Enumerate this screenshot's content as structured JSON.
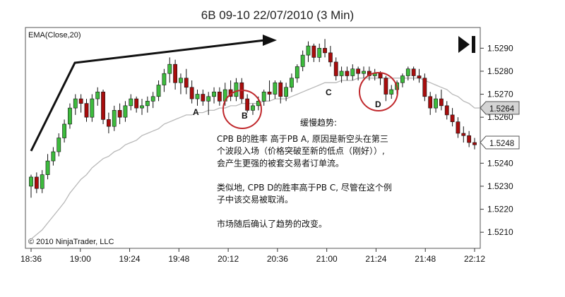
{
  "title": "6B 09-10  22/07/2010 (3 Min)",
  "indicator_label": "EMA(Close,20)",
  "copyright": "© 2010 NinjaTrader, LLC",
  "colors": {
    "up": "#3dbb3d",
    "down": "#a80d0d",
    "ema": "#b8b8b8",
    "circle": "#c0282c",
    "trend": "#111111"
  },
  "annotations": {
    "labels": {
      "A": "A",
      "B": "B",
      "C": "C",
      "D": "D"
    },
    "note_title": "缓慢趋势:",
    "note_lines": [
      "CPB B的胜率 高于PB A, 原因是新空头在第三",
      "个波段入场（价格突破至新的低点（刚好））,",
      "会产生更强的被套交易者订单流。",
      "",
      "类似地, CPB D的胜率高于PB C, 尽管在这个例",
      "子中该交易被取消。",
      "",
      "市场随后确认了趋势的改变。"
    ]
  },
  "chart_data": {
    "type": "candlestick",
    "title": "6B 09-10  22/07/2010 (3 Min)",
    "x_ticks": [
      "18:36",
      "19:00",
      "19:24",
      "19:48",
      "20:12",
      "20:36",
      "21:00",
      "21:24",
      "21:48",
      "22:12"
    ],
    "y_ticks": [
      "1.5290",
      "1.5280",
      "1.5270",
      "1.5260",
      "1.5240",
      "1.5230",
      "1.5220",
      "1.5210"
    ],
    "ylim": [
      1.5203,
      1.5299
    ],
    "current_ema": "1.5264",
    "current_price": "1.5248",
    "candles": [
      {
        "o": 1.523,
        "h": 1.5235,
        "l": 1.5225,
        "c": 1.5234
      },
      {
        "o": 1.5234,
        "h": 1.5236,
        "l": 1.5227,
        "c": 1.5229
      },
      {
        "o": 1.5229,
        "h": 1.5237,
        "l": 1.5227,
        "c": 1.5235
      },
      {
        "o": 1.5235,
        "h": 1.5244,
        "l": 1.5233,
        "c": 1.5241
      },
      {
        "o": 1.5241,
        "h": 1.5247,
        "l": 1.5239,
        "c": 1.5245
      },
      {
        "o": 1.5245,
        "h": 1.5253,
        "l": 1.5243,
        "c": 1.5251
      },
      {
        "o": 1.5251,
        "h": 1.5259,
        "l": 1.5249,
        "c": 1.5257
      },
      {
        "o": 1.5257,
        "h": 1.5266,
        "l": 1.5255,
        "c": 1.5264
      },
      {
        "o": 1.5264,
        "h": 1.527,
        "l": 1.5261,
        "c": 1.5268
      },
      {
        "o": 1.5268,
        "h": 1.527,
        "l": 1.5262,
        "c": 1.5266
      },
      {
        "o": 1.5266,
        "h": 1.5268,
        "l": 1.5258,
        "c": 1.526
      },
      {
        "o": 1.526,
        "h": 1.527,
        "l": 1.5258,
        "c": 1.5268
      },
      {
        "o": 1.5268,
        "h": 1.5273,
        "l": 1.5265,
        "c": 1.5271
      },
      {
        "o": 1.5271,
        "h": 1.5272,
        "l": 1.5257,
        "c": 1.5259
      },
      {
        "o": 1.5259,
        "h": 1.5262,
        "l": 1.5253,
        "c": 1.5256
      },
      {
        "o": 1.5256,
        "h": 1.5265,
        "l": 1.5254,
        "c": 1.5263
      },
      {
        "o": 1.5263,
        "h": 1.5266,
        "l": 1.5257,
        "c": 1.526
      },
      {
        "o": 1.526,
        "h": 1.5267,
        "l": 1.5258,
        "c": 1.5265
      },
      {
        "o": 1.5265,
        "h": 1.527,
        "l": 1.5263,
        "c": 1.5268
      },
      {
        "o": 1.5268,
        "h": 1.5269,
        "l": 1.5262,
        "c": 1.5264
      },
      {
        "o": 1.5264,
        "h": 1.5268,
        "l": 1.5261,
        "c": 1.5265
      },
      {
        "o": 1.5265,
        "h": 1.5269,
        "l": 1.5262,
        "c": 1.5267
      },
      {
        "o": 1.5267,
        "h": 1.5271,
        "l": 1.5264,
        "c": 1.5269
      },
      {
        "o": 1.5269,
        "h": 1.5276,
        "l": 1.5267,
        "c": 1.5274
      },
      {
        "o": 1.5274,
        "h": 1.5281,
        "l": 1.5271,
        "c": 1.5279
      },
      {
        "o": 1.5279,
        "h": 1.5286,
        "l": 1.5275,
        "c": 1.5283
      },
      {
        "o": 1.5283,
        "h": 1.5285,
        "l": 1.5272,
        "c": 1.5275
      },
      {
        "o": 1.5275,
        "h": 1.5279,
        "l": 1.527,
        "c": 1.5277
      },
      {
        "o": 1.5277,
        "h": 1.5281,
        "l": 1.527,
        "c": 1.5273
      },
      {
        "o": 1.5273,
        "h": 1.5276,
        "l": 1.5266,
        "c": 1.5268
      },
      {
        "o": 1.5268,
        "h": 1.5272,
        "l": 1.5265,
        "c": 1.527
      },
      {
        "o": 1.527,
        "h": 1.5272,
        "l": 1.5265,
        "c": 1.5267
      },
      {
        "o": 1.5267,
        "h": 1.5271,
        "l": 1.5261,
        "c": 1.5269
      },
      {
        "o": 1.5269,
        "h": 1.5273,
        "l": 1.5266,
        "c": 1.5271
      },
      {
        "o": 1.5271,
        "h": 1.5273,
        "l": 1.5265,
        "c": 1.5267
      },
      {
        "o": 1.5267,
        "h": 1.5275,
        "l": 1.5265,
        "c": 1.5272
      },
      {
        "o": 1.5272,
        "h": 1.5276,
        "l": 1.5267,
        "c": 1.5269
      },
      {
        "o": 1.5269,
        "h": 1.5277,
        "l": 1.5267,
        "c": 1.5275
      },
      {
        "o": 1.5275,
        "h": 1.5277,
        "l": 1.5266,
        "c": 1.5268
      },
      {
        "o": 1.5268,
        "h": 1.527,
        "l": 1.5262,
        "c": 1.5263
      },
      {
        "o": 1.5263,
        "h": 1.5266,
        "l": 1.5261,
        "c": 1.5265
      },
      {
        "o": 1.5265,
        "h": 1.5269,
        "l": 1.5263,
        "c": 1.5267
      },
      {
        "o": 1.5267,
        "h": 1.5272,
        "l": 1.5265,
        "c": 1.5271
      },
      {
        "o": 1.5271,
        "h": 1.5276,
        "l": 1.5267,
        "c": 1.527
      },
      {
        "o": 1.527,
        "h": 1.5276,
        "l": 1.5268,
        "c": 1.5275
      },
      {
        "o": 1.5275,
        "h": 1.5276,
        "l": 1.5266,
        "c": 1.5269
      },
      {
        "o": 1.5269,
        "h": 1.5275,
        "l": 1.5267,
        "c": 1.5273
      },
      {
        "o": 1.5273,
        "h": 1.5279,
        "l": 1.5271,
        "c": 1.5277
      },
      {
        "o": 1.5277,
        "h": 1.5283,
        "l": 1.5275,
        "c": 1.5282
      },
      {
        "o": 1.5282,
        "h": 1.5289,
        "l": 1.528,
        "c": 1.5287
      },
      {
        "o": 1.5287,
        "h": 1.5293,
        "l": 1.5284,
        "c": 1.5291
      },
      {
        "o": 1.5291,
        "h": 1.5292,
        "l": 1.5284,
        "c": 1.5286
      },
      {
        "o": 1.5286,
        "h": 1.5292,
        "l": 1.5284,
        "c": 1.529
      },
      {
        "o": 1.529,
        "h": 1.5294,
        "l": 1.5286,
        "c": 1.5288
      },
      {
        "o": 1.5288,
        "h": 1.5291,
        "l": 1.5282,
        "c": 1.5284
      },
      {
        "o": 1.5284,
        "h": 1.5286,
        "l": 1.5276,
        "c": 1.5278
      },
      {
        "o": 1.5278,
        "h": 1.5282,
        "l": 1.5275,
        "c": 1.528
      },
      {
        "o": 1.528,
        "h": 1.5282,
        "l": 1.5276,
        "c": 1.5278
      },
      {
        "o": 1.5278,
        "h": 1.5283,
        "l": 1.5276,
        "c": 1.5281
      },
      {
        "o": 1.5281,
        "h": 1.5282,
        "l": 1.5276,
        "c": 1.5279
      },
      {
        "o": 1.5279,
        "h": 1.5282,
        "l": 1.5277,
        "c": 1.528
      },
      {
        "o": 1.528,
        "h": 1.5282,
        "l": 1.5276,
        "c": 1.5278
      },
      {
        "o": 1.5278,
        "h": 1.5281,
        "l": 1.5276,
        "c": 1.5279
      },
      {
        "o": 1.5279,
        "h": 1.528,
        "l": 1.5274,
        "c": 1.5277
      },
      {
        "o": 1.5277,
        "h": 1.5278,
        "l": 1.5267,
        "c": 1.527
      },
      {
        "o": 1.527,
        "h": 1.5274,
        "l": 1.5268,
        "c": 1.5272
      },
      {
        "o": 1.5272,
        "h": 1.5276,
        "l": 1.527,
        "c": 1.5275
      },
      {
        "o": 1.5275,
        "h": 1.5279,
        "l": 1.5273,
        "c": 1.5278
      },
      {
        "o": 1.5278,
        "h": 1.5282,
        "l": 1.5276,
        "c": 1.5281
      },
      {
        "o": 1.5281,
        "h": 1.5282,
        "l": 1.5276,
        "c": 1.5278
      },
      {
        "o": 1.5278,
        "h": 1.5281,
        "l": 1.5275,
        "c": 1.5277
      },
      {
        "o": 1.5277,
        "h": 1.5279,
        "l": 1.5267,
        "c": 1.5269
      },
      {
        "o": 1.5269,
        "h": 1.5271,
        "l": 1.5261,
        "c": 1.5264
      },
      {
        "o": 1.5264,
        "h": 1.527,
        "l": 1.5262,
        "c": 1.5268
      },
      {
        "o": 1.5268,
        "h": 1.5272,
        "l": 1.5263,
        "c": 1.5265
      },
      {
        "o": 1.5265,
        "h": 1.5267,
        "l": 1.5259,
        "c": 1.5261
      },
      {
        "o": 1.5261,
        "h": 1.5264,
        "l": 1.5256,
        "c": 1.5258
      },
      {
        "o": 1.5258,
        "h": 1.526,
        "l": 1.5251,
        "c": 1.5253
      },
      {
        "o": 1.5253,
        "h": 1.5256,
        "l": 1.5249,
        "c": 1.5252
      },
      {
        "o": 1.5252,
        "h": 1.5254,
        "l": 1.5247,
        "c": 1.5249
      },
      {
        "o": 1.5249,
        "h": 1.5251,
        "l": 1.5246,
        "c": 1.5248
      }
    ],
    "ema": [
      1.5207,
      1.5209,
      1.5211,
      1.5214,
      1.5217,
      1.522,
      1.5223,
      1.5227,
      1.523,
      1.5233,
      1.5235,
      1.5238,
      1.524,
      1.5242,
      1.5243,
      1.5245,
      1.5246,
      1.5248,
      1.5249,
      1.525,
      1.5252,
      1.5253,
      1.5254,
      1.5255,
      1.5257,
      1.5258,
      1.5259,
      1.526,
      1.5261,
      1.5261,
      1.5262,
      1.5262,
      1.5263,
      1.5263,
      1.5264,
      1.5264,
      1.5265,
      1.5265,
      1.5266,
      1.5266,
      1.5266,
      1.5266,
      1.5267,
      1.5267,
      1.5268,
      1.5268,
      1.5268,
      1.5269,
      1.527,
      1.5271,
      1.5272,
      1.5273,
      1.5274,
      1.5275,
      1.5275,
      1.5275,
      1.5276,
      1.5276,
      1.5276,
      1.5277,
      1.5277,
      1.5277,
      1.5277,
      1.5277,
      1.5277,
      1.5277,
      1.5277,
      1.5277,
      1.5277,
      1.5277,
      1.5277,
      1.5276,
      1.5275,
      1.5274,
      1.5273,
      1.5272,
      1.527,
      1.5269,
      1.5267,
      1.5266,
      1.5264
    ]
  }
}
